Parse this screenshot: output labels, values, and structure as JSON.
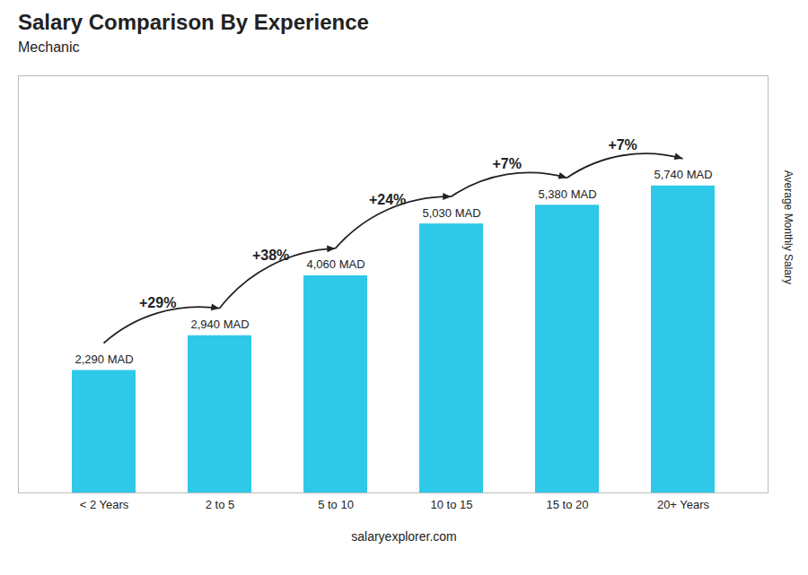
{
  "chart_data": {
    "type": "bar",
    "title": "Salary Comparison By Experience",
    "subtitle": "Mechanic",
    "caption": "salaryexplorer.com",
    "ylabel": "Average Monthly Salary",
    "categories": [
      "< 2 Years",
      "2 to 5",
      "5 to 10",
      "10 to 15",
      "15 to 20",
      "20+ Years"
    ],
    "values": [
      2290,
      2940,
      4060,
      5030,
      5380,
      5740
    ],
    "value_labels": [
      "2,290 MAD",
      "2,940 MAD",
      "4,060 MAD",
      "5,030 MAD",
      "5,380 MAD",
      "5,740 MAD"
    ],
    "data_labels": true,
    "color": "#2ec8e8",
    "ylim": [
      0,
      7800
    ],
    "yticks": [],
    "tick_labels": "x",
    "grid": false,
    "annotations": [
      {
        "text": "+29%",
        "from": "< 2 Years",
        "to": "2 to 5"
      },
      {
        "text": "+38%",
        "from": "2 to 5",
        "to": "5 to 10"
      },
      {
        "text": "+24%",
        "from": "5 to 10",
        "to": "10 to 15"
      },
      {
        "text": "+7%",
        "from": "10 to 15",
        "to": "15 to 20"
      },
      {
        "text": "+7%",
        "from": "15 to 20",
        "to": "20+ Years"
      }
    ]
  }
}
